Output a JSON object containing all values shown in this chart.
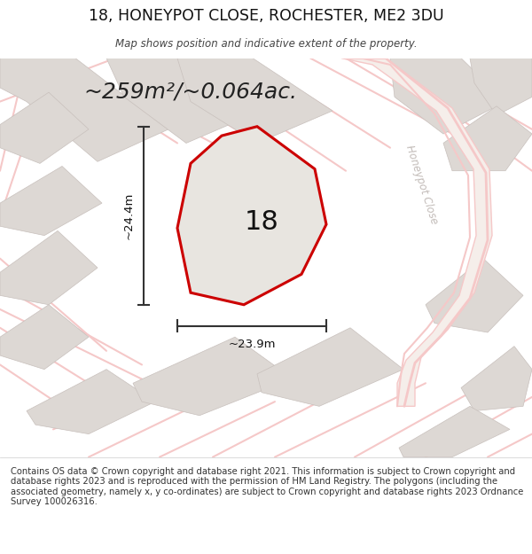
{
  "title": "18, HONEYPOT CLOSE, ROCHESTER, ME2 3DU",
  "subtitle": "Map shows position and indicative extent of the property.",
  "area_text": "~259m²/~0.064ac.",
  "number_label": "18",
  "dim_horizontal": "~23.9m",
  "dim_vertical": "~24.4m",
  "street_label": "Honeypot Close",
  "footer_text": "Contains OS data © Crown copyright and database right 2021. This information is subject to Crown copyright and database rights 2023 and is reproduced with the permission of HM Land Registry. The polygons (including the associated geometry, namely x, y co-ordinates) are subject to Crown copyright and database rights 2023 Ordnance Survey 100026316.",
  "map_bg": "#f2ece8",
  "road_color": "#f5c8c8",
  "plot_outline_color": "#cc0000",
  "dim_line_color": "#333333",
  "street_label_color": "#b8b0ac",
  "footer_bg": "#ffffff",
  "title_color": "#111111",
  "subtitle_color": "#444444",
  "gray_plot_fill": "#ddd8d4",
  "gray_plot_edge": "#c8c0bc",
  "white_bg": "#ffffff"
}
